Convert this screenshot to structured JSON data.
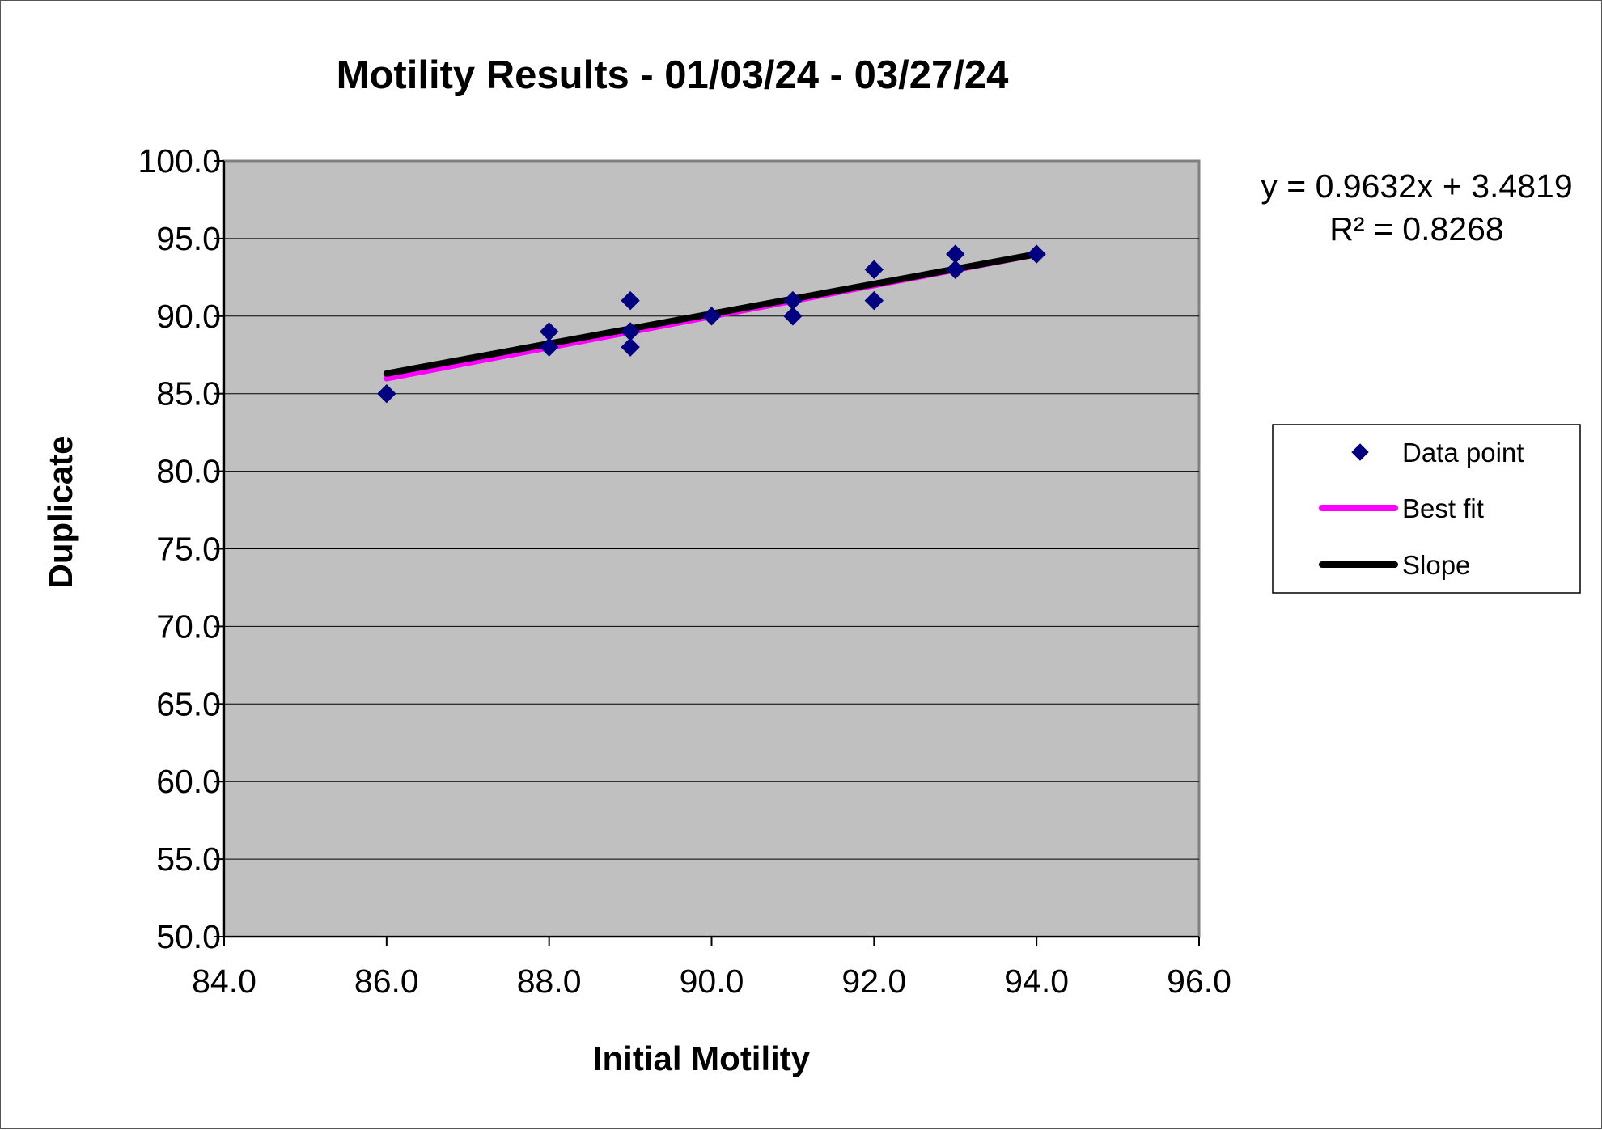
{
  "chart_data": {
    "type": "scatter",
    "title": "Motility Results - 01/03/24 - 03/27/24",
    "xlabel": "Initial Motility",
    "ylabel": "Duplicate",
    "xlim": [
      84.0,
      96.0
    ],
    "ylim": [
      50.0,
      100.0
    ],
    "x_ticks": [
      "84.0",
      "86.0",
      "88.0",
      "90.0",
      "92.0",
      "94.0",
      "96.0"
    ],
    "y_ticks": [
      "50.0",
      "55.0",
      "60.0",
      "65.0",
      "70.0",
      "75.0",
      "80.0",
      "85.0",
      "90.0",
      "95.0",
      "100.0"
    ],
    "x_tick_values": [
      84,
      86,
      88,
      90,
      92,
      94,
      96
    ],
    "y_tick_values": [
      50,
      55,
      60,
      65,
      70,
      75,
      80,
      85,
      90,
      95,
      100
    ],
    "grid": "horizontal",
    "plot_background": "#c0c0c0",
    "legend_placement": "right",
    "equation": "y = 0.9632x + 3.4819",
    "r_squared": "R² = 0.8268",
    "series": [
      {
        "name": "Data point",
        "kind": "scatter",
        "color": "#000080",
        "marker": "diamond",
        "points": [
          {
            "x": 86,
            "y": 85
          },
          {
            "x": 88,
            "y": 89
          },
          {
            "x": 88,
            "y": 88
          },
          {
            "x": 89,
            "y": 91
          },
          {
            "x": 89,
            "y": 89
          },
          {
            "x": 89,
            "y": 88
          },
          {
            "x": 90,
            "y": 90
          },
          {
            "x": 91,
            "y": 91
          },
          {
            "x": 91,
            "y": 90
          },
          {
            "x": 92,
            "y": 93
          },
          {
            "x": 92,
            "y": 91
          },
          {
            "x": 93,
            "y": 94
          },
          {
            "x": 93,
            "y": 93
          },
          {
            "x": 94,
            "y": 94
          }
        ]
      },
      {
        "name": "Best fit",
        "kind": "line",
        "color": "#ff00ff",
        "points": [
          {
            "x": 86,
            "y": 86.0
          },
          {
            "x": 94,
            "y": 94.0
          }
        ]
      },
      {
        "name": "Slope",
        "kind": "line",
        "color": "#000000",
        "points": [
          {
            "x": 86,
            "y": 86.3
          },
          {
            "x": 94,
            "y": 94.0
          }
        ]
      }
    ]
  }
}
